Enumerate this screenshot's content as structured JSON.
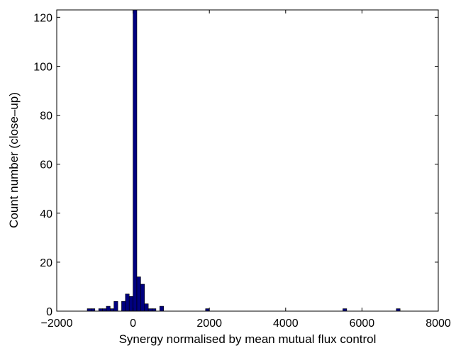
{
  "chart_data": {
    "type": "bar",
    "xlabel": "Synergy normalised by mean mutual flux control",
    "ylabel": "Count number (close–up)",
    "xlim": [
      -2000,
      8000
    ],
    "ylim": [
      0,
      123
    ],
    "x_ticks": [
      -2000,
      0,
      2000,
      4000,
      6000,
      8000
    ],
    "x_tick_labels": [
      "−2000",
      "0",
      "2000",
      "4000",
      "6000",
      "8000"
    ],
    "y_ticks": [
      0,
      20,
      40,
      60,
      80,
      100,
      120
    ],
    "y_tick_labels": [
      "0",
      "20",
      "40",
      "60",
      "80",
      "100",
      "120"
    ],
    "bin_width": 100,
    "bins": [
      {
        "x": -1150,
        "value": 1
      },
      {
        "x": -1050,
        "value": 1
      },
      {
        "x": -850,
        "value": 1
      },
      {
        "x": -750,
        "value": 1
      },
      {
        "x": -650,
        "value": 2
      },
      {
        "x": -550,
        "value": 1
      },
      {
        "x": -450,
        "value": 4
      },
      {
        "x": -350,
        "value": 0
      },
      {
        "x": -250,
        "value": 4
      },
      {
        "x": -150,
        "value": 7
      },
      {
        "x": -50,
        "value": 6
      },
      {
        "x": 50,
        "value": 123
      },
      {
        "x": 150,
        "value": 14
      },
      {
        "x": 250,
        "value": 11
      },
      {
        "x": 350,
        "value": 3
      },
      {
        "x": 450,
        "value": 1
      },
      {
        "x": 550,
        "value": 1
      },
      {
        "x": 750,
        "value": 2
      },
      {
        "x": 1950,
        "value": 1
      },
      {
        "x": 5550,
        "value": 1
      },
      {
        "x": 6950,
        "value": 1
      }
    ],
    "bar_color": "#00007f",
    "grid": false
  }
}
